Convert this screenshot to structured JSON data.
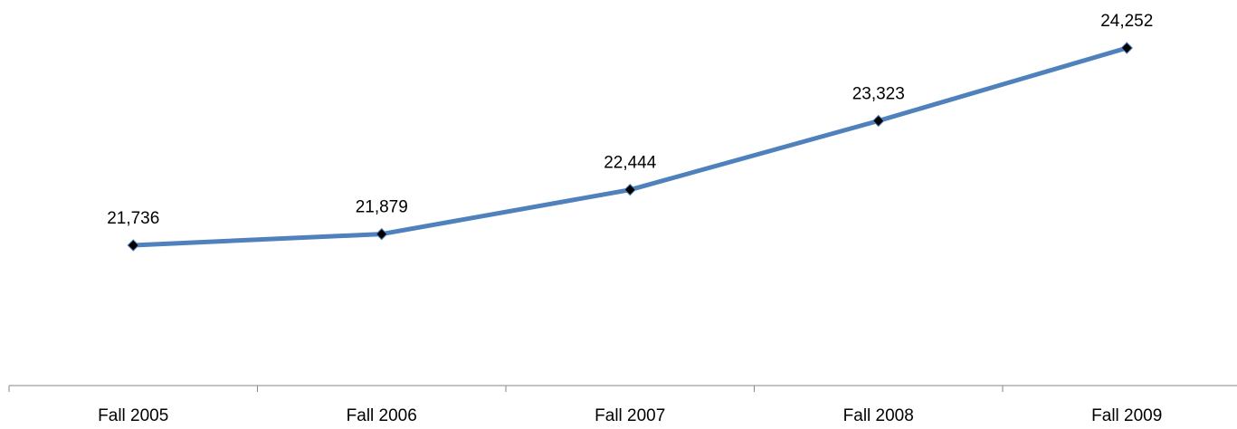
{
  "chart_data": {
    "type": "line",
    "categories": [
      "Fall 2005",
      "Fall 2006",
      "Fall 2007",
      "Fall 2008",
      "Fall 2009"
    ],
    "series": [
      {
        "values": [
          21736,
          21879,
          22444,
          23323,
          24252
        ],
        "labels": [
          "21,736",
          "21,879",
          "22,444",
          "23,323",
          "24,252"
        ],
        "color": "#4f81bd",
        "marker_color": "#000000"
      }
    ],
    "title": "",
    "xlabel": "",
    "ylabel": "",
    "grid": false,
    "legend": "none"
  }
}
